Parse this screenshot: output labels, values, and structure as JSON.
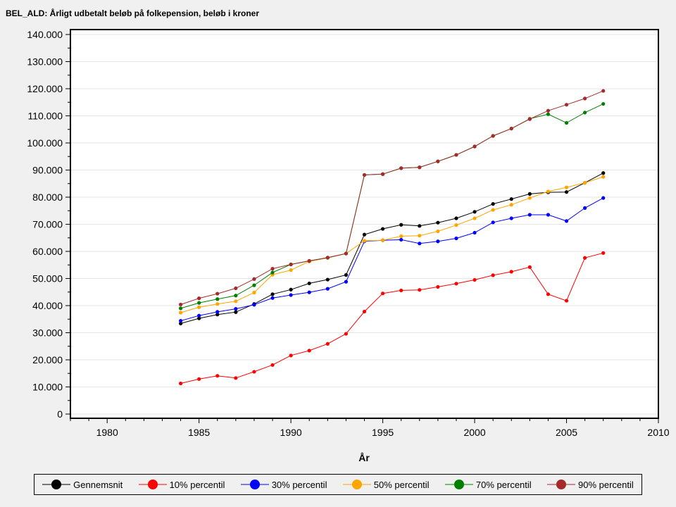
{
  "chart_data": {
    "type": "line",
    "title": "BEL_ALD: Årligt udbetalt beløb på folkepension, beløb i kroner",
    "xlabel": "År",
    "ylabel": "",
    "xlim": [
      1978,
      2010
    ],
    "ylim": [
      0,
      140000
    ],
    "x_ticks": [
      1980,
      1985,
      1990,
      1995,
      2000,
      2005,
      2010
    ],
    "x_tick_labels": [
      "1980",
      "1985",
      "1990",
      "1995",
      "2000",
      "2005",
      "2010"
    ],
    "y_ticks": [
      0,
      10000,
      20000,
      30000,
      40000,
      50000,
      60000,
      70000,
      80000,
      90000,
      100000,
      110000,
      120000,
      130000,
      140000
    ],
    "y_tick_labels": [
      "0",
      "10.000",
      "20.000",
      "30.000",
      "40.000",
      "50.000",
      "60.000",
      "70.000",
      "80.000",
      "90.000",
      "100.000",
      "110.000",
      "120.000",
      "130.000",
      "140.000"
    ],
    "grid": true,
    "legend_position": "bottom",
    "x": [
      1984,
      1985,
      1986,
      1987,
      1988,
      1989,
      1990,
      1991,
      1992,
      1993,
      1994,
      1995,
      1996,
      1997,
      1998,
      1999,
      2000,
      2001,
      2002,
      2003,
      2004,
      2005,
      2006,
      2007
    ],
    "series": [
      {
        "name": "Gennemsnit",
        "color": "#000000",
        "values": [
          33400,
          35300,
          36700,
          37600,
          40600,
          44200,
          45900,
          48200,
          49600,
          51300,
          66200,
          68300,
          69800,
          69400,
          70600,
          72200,
          74600,
          77500,
          79300,
          81200,
          81800,
          81900,
          85300,
          88900
        ]
      },
      {
        "name": "10% percentil",
        "color": "#ff0000",
        "values": [
          11300,
          12900,
          14100,
          13300,
          15600,
          18100,
          21600,
          23400,
          25900,
          29600,
          37800,
          44500,
          45600,
          45800,
          46900,
          48100,
          49500,
          51200,
          52500,
          54200,
          44200,
          41800,
          57600,
          59400
        ]
      },
      {
        "name": "30% percentil",
        "color": "#0000ff",
        "values": [
          34400,
          36300,
          37700,
          38800,
          40300,
          42800,
          43900,
          44900,
          46200,
          48800,
          63700,
          64100,
          64300,
          62900,
          63700,
          64800,
          66900,
          70700,
          72200,
          73500,
          73500,
          71200,
          76000,
          79700
        ]
      },
      {
        "name": "50% percentil",
        "color": "#ffa500",
        "values": [
          37400,
          39400,
          40600,
          41600,
          44800,
          51400,
          53100,
          56300,
          57600,
          59200,
          63900,
          64100,
          65600,
          65800,
          67400,
          69700,
          72200,
          75300,
          77200,
          79700,
          82100,
          83600,
          85300,
          87500
        ]
      },
      {
        "name": "70% percentil",
        "color": "#008000",
        "values": [
          39000,
          41000,
          42400,
          43700,
          47500,
          52200,
          55200,
          56500,
          57700,
          59200,
          88200,
          88500,
          90700,
          91000,
          93200,
          95600,
          98700,
          102600,
          105300,
          108900,
          110600,
          107400,
          111200,
          114400
        ]
      },
      {
        "name": "90% percentil",
        "color": "#a52a2a",
        "values": [
          40400,
          42700,
          44400,
          46400,
          49800,
          53600,
          55200,
          56500,
          57700,
          59200,
          88200,
          88500,
          90700,
          91000,
          93200,
          95600,
          98700,
          102600,
          105300,
          108800,
          111900,
          114100,
          116400,
          119200
        ]
      }
    ]
  }
}
